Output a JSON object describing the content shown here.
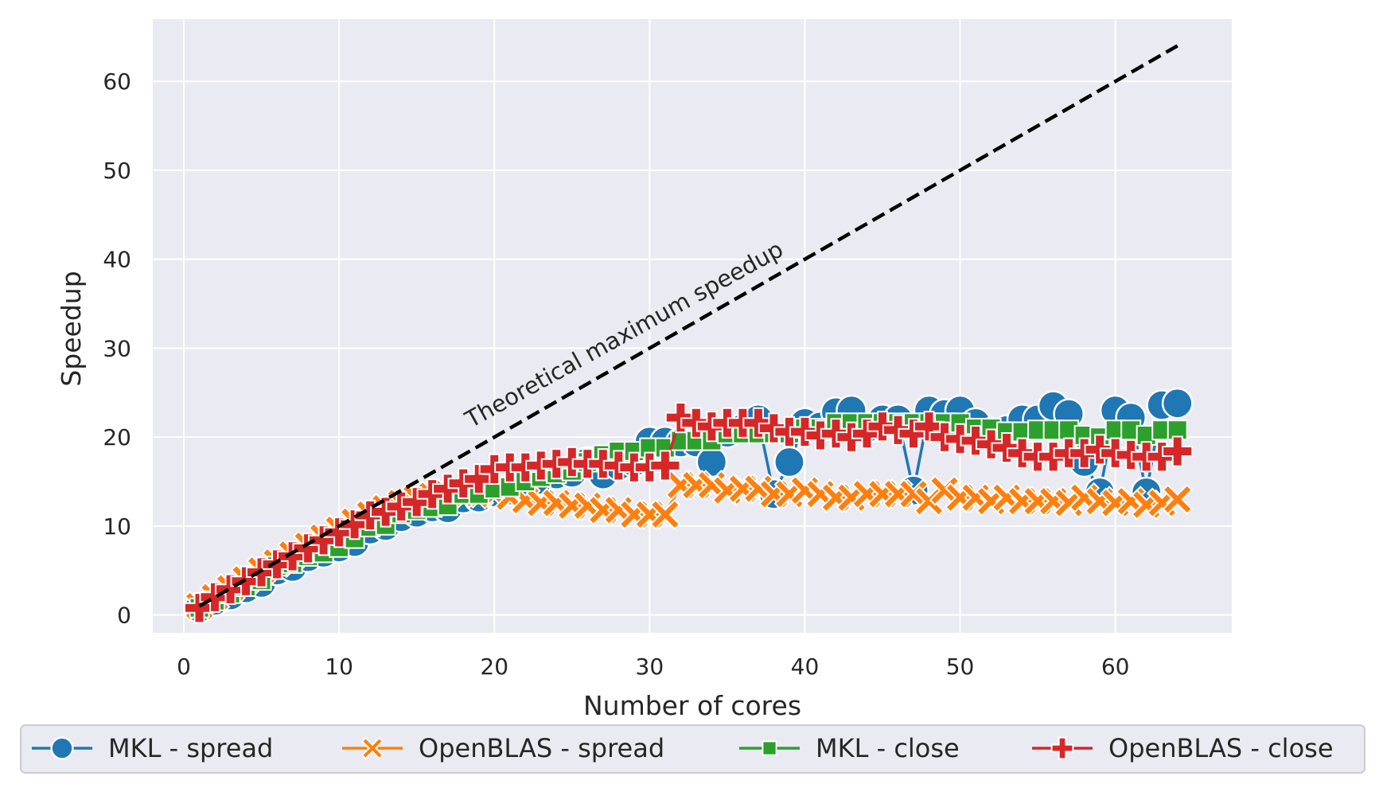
{
  "chart_data": {
    "type": "line",
    "title": "",
    "xlabel": "Number of cores",
    "ylabel": "Speedup",
    "xlim": [
      -2,
      67.5
    ],
    "ylim": [
      -2,
      67
    ],
    "xticks": [
      0,
      10,
      20,
      30,
      40,
      50,
      60
    ],
    "yticks": [
      0,
      10,
      20,
      30,
      40,
      50,
      60
    ],
    "grid": true,
    "legend_position": "bottom",
    "annotation": {
      "text": "Theoretical maximum speedup",
      "x": 18.5,
      "y": 21,
      "angle_deg": -29
    },
    "reference_line": {
      "name": "Theoretical maximum speedup",
      "x": [
        1,
        64
      ],
      "y": [
        1,
        64
      ],
      "color": "#000000",
      "style": "dashed"
    },
    "series": [
      {
        "name": "MKL - spread",
        "color": "#1f77b4",
        "marker": "circle",
        "x": [
          1,
          2,
          3,
          4,
          5,
          6,
          7,
          8,
          9,
          10,
          11,
          12,
          13,
          14,
          15,
          16,
          17,
          18,
          19,
          20,
          21,
          22,
          23,
          24,
          25,
          26,
          27,
          28,
          29,
          30,
          31,
          32,
          33,
          34,
          35,
          36,
          37,
          38,
          39,
          40,
          41,
          42,
          43,
          44,
          45,
          46,
          47,
          48,
          49,
          50,
          51,
          52,
          53,
          54,
          55,
          56,
          57,
          58,
          59,
          60,
          61,
          62,
          63,
          64
        ],
        "values": [
          0.8,
          1.6,
          2.2,
          3.0,
          3.6,
          5.0,
          5.4,
          6.5,
          7.0,
          7.6,
          8.2,
          9.6,
          10.0,
          11.0,
          11.5,
          12.1,
          12.0,
          13.1,
          13.2,
          13.8,
          14.0,
          14.3,
          15.2,
          15.8,
          16.0,
          17.2,
          15.8,
          16.8,
          17.2,
          19.5,
          19.5,
          19.4,
          19.4,
          17.2,
          20.5,
          21.0,
          22.0,
          13.6,
          17.2,
          21.6,
          21.2,
          22.8,
          23.0,
          21.0,
          22.0,
          22.0,
          14.0,
          23.0,
          22.6,
          23.0,
          21.6,
          20.5,
          20.8,
          22.0,
          22.0,
          23.5,
          22.6,
          17.2,
          13.8,
          23.0,
          22.2,
          13.8,
          23.6,
          23.8
        ]
      },
      {
        "name": "OpenBLAS - spread",
        "color": "#ff7f0e",
        "marker": "x",
        "x": [
          1,
          2,
          3,
          4,
          5,
          6,
          7,
          8,
          9,
          10,
          11,
          12,
          13,
          14,
          15,
          16,
          17,
          18,
          19,
          20,
          21,
          22,
          23,
          24,
          25,
          26,
          27,
          28,
          29,
          30,
          31,
          32,
          33,
          34,
          35,
          36,
          37,
          38,
          39,
          40,
          41,
          42,
          43,
          44,
          45,
          46,
          47,
          48,
          49,
          50,
          51,
          52,
          53,
          54,
          55,
          56,
          57,
          58,
          59,
          60,
          61,
          62,
          63,
          64
        ],
        "values": [
          1.0,
          2.0,
          3.0,
          4.0,
          5.0,
          5.9,
          6.8,
          7.8,
          8.7,
          9.6,
          10.5,
          11.3,
          12.0,
          12.6,
          13.1,
          13.4,
          13.6,
          13.7,
          13.7,
          13.6,
          13.3,
          12.9,
          12.6,
          12.6,
          12.3,
          12.3,
          11.8,
          11.8,
          11.3,
          11.3,
          11.3,
          14.6,
          14.6,
          14.6,
          14.0,
          14.2,
          14.2,
          13.6,
          13.6,
          14.0,
          13.6,
          13.2,
          13.2,
          13.6,
          13.6,
          13.6,
          13.6,
          12.8,
          14.0,
          13.2,
          13.2,
          12.8,
          13.2,
          12.8,
          12.8,
          12.8,
          12.6,
          13.2,
          12.8,
          12.6,
          12.8,
          12.4,
          12.6,
          13.0
        ]
      },
      {
        "name": "MKL - close",
        "color": "#2ca02c",
        "marker": "square",
        "x": [
          1,
          2,
          3,
          4,
          5,
          6,
          7,
          8,
          9,
          10,
          11,
          12,
          13,
          14,
          15,
          16,
          17,
          18,
          19,
          20,
          21,
          22,
          23,
          24,
          25,
          26,
          27,
          28,
          29,
          30,
          31,
          32,
          33,
          34,
          35,
          36,
          37,
          38,
          39,
          40,
          41,
          42,
          43,
          44,
          45,
          46,
          47,
          48,
          49,
          50,
          51,
          52,
          53,
          54,
          55,
          56,
          57,
          58,
          59,
          60,
          61,
          62,
          63,
          64
        ],
        "values": [
          0.8,
          1.6,
          2.4,
          3.2,
          3.9,
          5.5,
          5.8,
          6.6,
          7.0,
          7.6,
          8.6,
          9.9,
          10.1,
          11.4,
          11.8,
          12.1,
          12.3,
          13.6,
          13.6,
          14.2,
          14.4,
          15.0,
          15.5,
          15.9,
          16.2,
          17.2,
          18.0,
          18.4,
          18.4,
          18.8,
          18.8,
          19.6,
          19.6,
          19.6,
          20.4,
          20.4,
          20.4,
          20.4,
          20.4,
          21.0,
          21.0,
          21.6,
          21.6,
          21.6,
          21.6,
          21.6,
          21.6,
          21.6,
          21.6,
          21.6,
          21.0,
          21.0,
          20.6,
          20.6,
          20.8,
          20.8,
          20.8,
          20.2,
          20.0,
          20.8,
          20.8,
          20.2,
          20.8,
          20.8
        ]
      },
      {
        "name": "OpenBLAS - close",
        "color": "#d62728",
        "marker": "plus",
        "x": [
          1,
          2,
          3,
          4,
          5,
          6,
          7,
          8,
          9,
          10,
          11,
          12,
          13,
          14,
          15,
          16,
          17,
          18,
          19,
          20,
          21,
          22,
          23,
          24,
          25,
          26,
          27,
          28,
          29,
          30,
          31,
          32,
          33,
          34,
          35,
          36,
          37,
          38,
          39,
          40,
          41,
          42,
          43,
          44,
          45,
          46,
          47,
          48,
          49,
          50,
          51,
          52,
          53,
          54,
          55,
          56,
          57,
          58,
          59,
          60,
          61,
          62,
          63,
          64
        ],
        "values": [
          0.8,
          2.0,
          2.9,
          3.8,
          4.8,
          5.7,
          6.6,
          7.5,
          8.4,
          9.3,
          10.2,
          11.2,
          11.6,
          12.2,
          12.7,
          13.6,
          14.2,
          14.8,
          15.3,
          16.4,
          16.6,
          16.6,
          16.8,
          17.0,
          17.2,
          17.0,
          17.0,
          16.8,
          16.6,
          16.6,
          16.8,
          22.2,
          21.6,
          21.2,
          21.6,
          21.6,
          21.6,
          21.0,
          20.6,
          20.6,
          20.2,
          20.4,
          20.0,
          20.4,
          21.2,
          20.8,
          20.4,
          21.2,
          20.0,
          19.8,
          19.6,
          19.2,
          18.8,
          18.2,
          17.8,
          17.8,
          18.2,
          18.2,
          18.6,
          18.2,
          18.0,
          17.8,
          17.8,
          18.4
        ]
      }
    ]
  }
}
